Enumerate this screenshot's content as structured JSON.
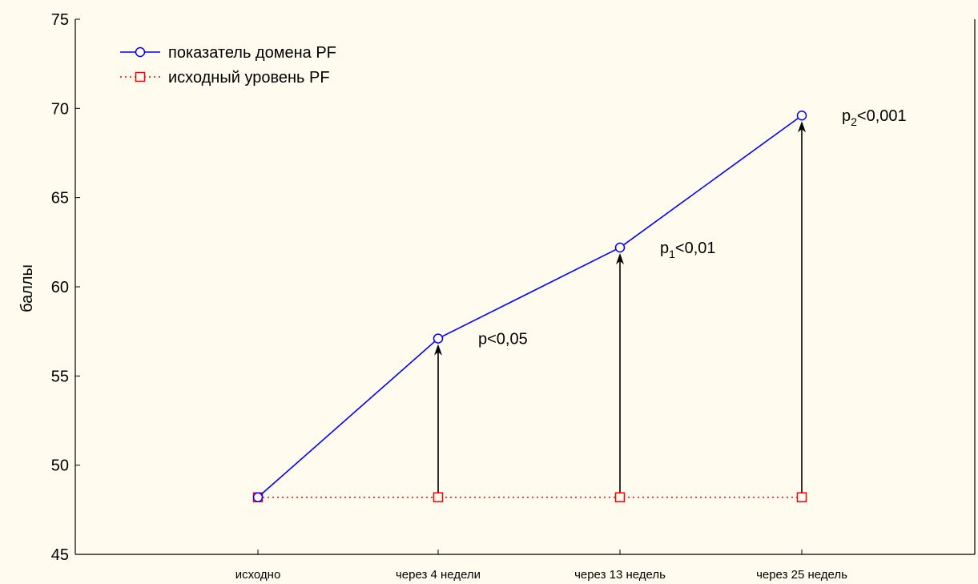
{
  "chart_data": {
    "type": "line",
    "categories": [
      "исходно",
      "через 4 недели",
      "через 13 недель",
      "через 25 недель"
    ],
    "ylabel": "баллы",
    "ylim": [
      45,
      75
    ],
    "yticks": [
      45,
      50,
      55,
      60,
      65,
      70,
      75
    ],
    "grid": false,
    "legend_position": "top-left",
    "series": [
      {
        "name": "показатель домена PF",
        "values": [
          48.2,
          57.1,
          62.2,
          69.6
        ],
        "color": "#0000ff",
        "marker": "circle",
        "line": "solid"
      },
      {
        "name": "исходный уровень PF",
        "values": [
          48.2,
          48.2,
          48.2,
          48.2
        ],
        "color": "#ff0000",
        "marker": "square",
        "line": "dotted"
      }
    ],
    "annotations": [
      {
        "category_index": 1,
        "prefix": "p",
        "sub": "",
        "suffix": "<0,05"
      },
      {
        "category_index": 2,
        "prefix": "p",
        "sub": "1",
        "suffix": "<0,01"
      },
      {
        "category_index": 3,
        "prefix": "p",
        "sub": "2",
        "suffix": "<0,001"
      }
    ]
  }
}
